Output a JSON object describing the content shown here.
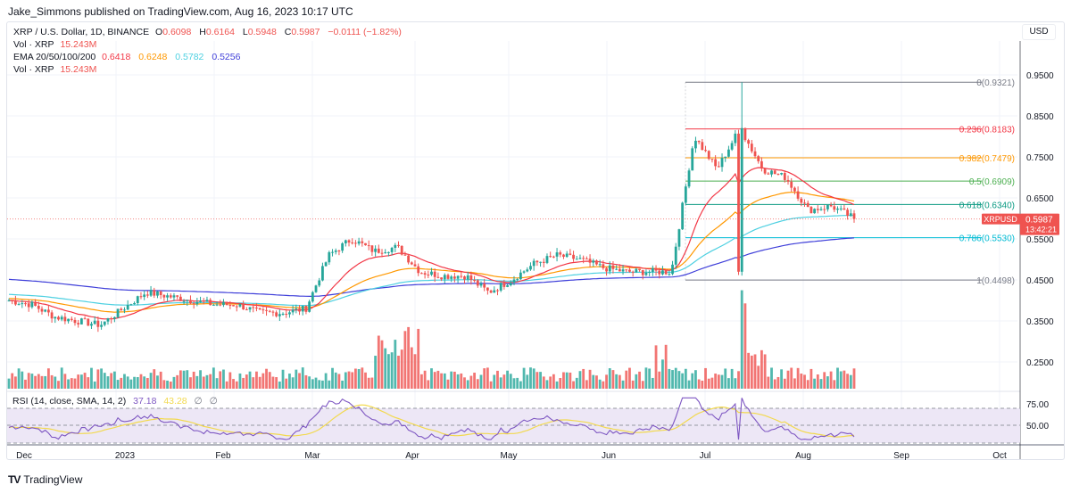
{
  "publisher_line": "Jake_Simmons published on TradingView.com, Aug 16, 2023 10:17 UTC",
  "legend": {
    "symbol_line": "XRP / U.S. Dollar, 1D, BINANCE",
    "open_label": "O",
    "open": "0.6098",
    "high_label": "H",
    "high": "0.6164",
    "low_label": "L",
    "low": "0.5948",
    "close_label": "C",
    "close": "0.5987",
    "change": "−0.0111 (−1.82%)",
    "vol_label": "Vol · XRP",
    "vol_value": "15.243M",
    "ema_label": "EMA 20/50/100/200",
    "ema20": "0.6418",
    "ema50": "0.6248",
    "ema100": "0.5782",
    "ema200": "0.5256",
    "vol2_label": "Vol · XRP",
    "vol2_value": "15.243M"
  },
  "currency_button": "USD",
  "price_axis": [
    "0.9500",
    "0.8500",
    "0.7500",
    "0.6500",
    "0.5500",
    "0.4500",
    "0.3500",
    "0.2500"
  ],
  "rsi_axis": [
    "75.00",
    "50.00"
  ],
  "time_axis": [
    "Dec",
    "2023",
    "Feb",
    "Mar",
    "Apr",
    "May",
    "Jun",
    "Jul",
    "Aug",
    "Sep",
    "Oct"
  ],
  "last_price": {
    "symbol": "XRPUSD",
    "price": "0.5987",
    "countdown": "13:42:21"
  },
  "rsi_legend": {
    "label": "RSI (14, close, SMA, 14, 2)",
    "rsi": "37.18",
    "sma": "43.28",
    "icon1": "∅",
    "icon2": "∅"
  },
  "brand": {
    "mark": "TV",
    "name": "TradingView"
  },
  "colors": {
    "up": "#26a69a",
    "down": "#ef5350",
    "ema20": "#f23645",
    "ema50": "#ff9800",
    "ema100": "#4dd0e1",
    "ema200": "#3f3fd9",
    "rsi": "#7e57c2",
    "rsi_sma": "#f2d94e",
    "rsi_band": "#ede7f6"
  },
  "chart_data": {
    "type": "candlestick",
    "title": "XRP / U.S. Dollar, 1D, BINANCE",
    "ylabel": "USD",
    "ylim": [
      0.22,
      0.97
    ],
    "x_ticks": [
      "Dec",
      "2023",
      "Feb",
      "Mar",
      "Apr",
      "May",
      "Jun",
      "Jul",
      "Aug",
      "Sep",
      "Oct"
    ],
    "y_ticks": [
      0.95,
      0.85,
      0.75,
      0.65,
      0.55,
      0.45,
      0.35,
      0.25
    ],
    "fibonacci": [
      {
        "level": "0",
        "price": 0.9321,
        "label": "0(0.9321)",
        "color": "#787b86"
      },
      {
        "level": "0.236",
        "price": 0.8183,
        "label": "0.236(0.8183)",
        "color": "#f23645"
      },
      {
        "level": "0.382",
        "price": 0.7479,
        "label": "0.382(0.7479)",
        "color": "#ff9800"
      },
      {
        "level": "0.5",
        "price": 0.6909,
        "label": "0.5(0.6909)",
        "color": "#4caf50"
      },
      {
        "level": "0.618",
        "price": 0.634,
        "label": "0.618(0.6340)",
        "color": "#089981"
      },
      {
        "level": "0.786",
        "price": 0.553,
        "label": "0.786(0.5530)",
        "color": "#00bcd4"
      },
      {
        "level": "1",
        "price": 0.4498,
        "label": "1(0.4498)",
        "color": "#787b86"
      }
    ],
    "ohlc_last": {
      "open": 0.6098,
      "high": 0.6164,
      "low": 0.5948,
      "close": 0.5987,
      "change": -0.0111,
      "change_pct": -1.82
    },
    "ema_last": {
      "ema20": 0.6418,
      "ema50": 0.6248,
      "ema100": 0.5782,
      "ema200": 0.5256
    },
    "volume_last": "15.243M",
    "rsi": {
      "period": 14,
      "value": 37.18,
      "sma": 43.28,
      "bands": [
        30,
        50,
        70
      ],
      "y_ticks": [
        75,
        50
      ]
    },
    "price_path": [
      [
        0.4,
        "Dec"
      ],
      [
        0.39,
        ""
      ],
      [
        0.36,
        ""
      ],
      [
        0.35,
        "2023"
      ],
      [
        0.34,
        ""
      ],
      [
        0.38,
        ""
      ],
      [
        0.42,
        "Feb"
      ],
      [
        0.41,
        ""
      ],
      [
        0.4,
        ""
      ],
      [
        0.39,
        ""
      ],
      [
        0.39,
        "Mar"
      ],
      [
        0.37,
        ""
      ],
      [
        0.37,
        ""
      ],
      [
        0.38,
        ""
      ],
      [
        0.51,
        ""
      ],
      [
        0.55,
        "Apr"
      ],
      [
        0.52,
        ""
      ],
      [
        0.53,
        ""
      ],
      [
        0.47,
        ""
      ],
      [
        0.46,
        "May"
      ],
      [
        0.46,
        ""
      ],
      [
        0.42,
        ""
      ],
      [
        0.45,
        ""
      ],
      [
        0.49,
        "Jun"
      ],
      [
        0.51,
        ""
      ],
      [
        0.5,
        ""
      ],
      [
        0.48,
        ""
      ],
      [
        0.47,
        "Jul"
      ],
      [
        0.47,
        ""
      ],
      [
        0.47,
        ""
      ],
      [
        0.8,
        ""
      ],
      [
        0.72,
        ""
      ],
      [
        0.82,
        ""
      ],
      [
        0.72,
        ""
      ],
      [
        0.7,
        "Aug"
      ],
      [
        0.62,
        ""
      ],
      [
        0.63,
        ""
      ],
      [
        0.6,
        ""
      ]
    ]
  }
}
